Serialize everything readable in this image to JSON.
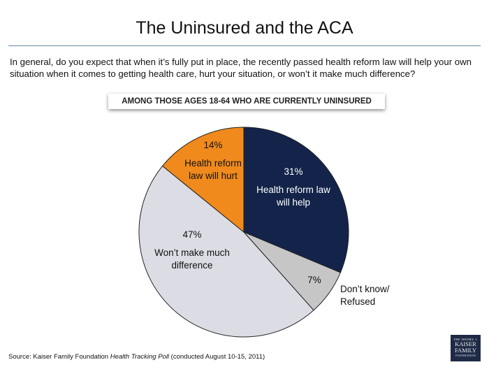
{
  "title": "The Uninsured and the ACA",
  "question": "In general, do you expect that when it’s fully put in place, the recently passed health reform law will help your own situation when it comes to getting health care, hurt your situation, or won’t it make much difference?",
  "subgroup_label": "AMONG THOSE AGES 18-64 WHO ARE CURRENTLY UNINSURED",
  "source": {
    "prefix": "Source: Kaiser Family Foundation ",
    "poll_name": "Health Tracking Poll",
    "suffix": " (conducted August 10-15, 2011)"
  },
  "logo": {
    "line1": "THE HENRY J.",
    "line2": "KAISER",
    "line3": "FAMILY",
    "line4": "FOUNDATION"
  },
  "colors": {
    "help": "#13234a",
    "dontknow": "#c6c6c6",
    "nodiff": "#dcdde4",
    "hurt": "#f08a1c"
  },
  "chart_data": {
    "type": "pie",
    "title": "The Uninsured and the ACA",
    "slices": [
      {
        "key": "help",
        "value": 31,
        "percent_label": "31%",
        "label_lines": [
          "Health reform law",
          "will help"
        ],
        "color": "#13234a",
        "text_color": "#ffffff"
      },
      {
        "key": "dontknow",
        "value": 7,
        "percent_label": "7%",
        "label_lines": [
          "Don’t know/",
          "Refused"
        ],
        "color": "#c6c6c6",
        "text_color": "#111111",
        "label_outside": true
      },
      {
        "key": "nodiff",
        "value": 47,
        "percent_label": "47%",
        "label_lines": [
          "Won’t make much",
          "difference"
        ],
        "color": "#dcdde4",
        "text_color": "#111111"
      },
      {
        "key": "hurt",
        "value": 14,
        "percent_label": "14%",
        "label_lines": [
          "Health reform",
          "law will hurt"
        ],
        "color": "#f08a1c",
        "text_color": "#111111"
      }
    ]
  }
}
